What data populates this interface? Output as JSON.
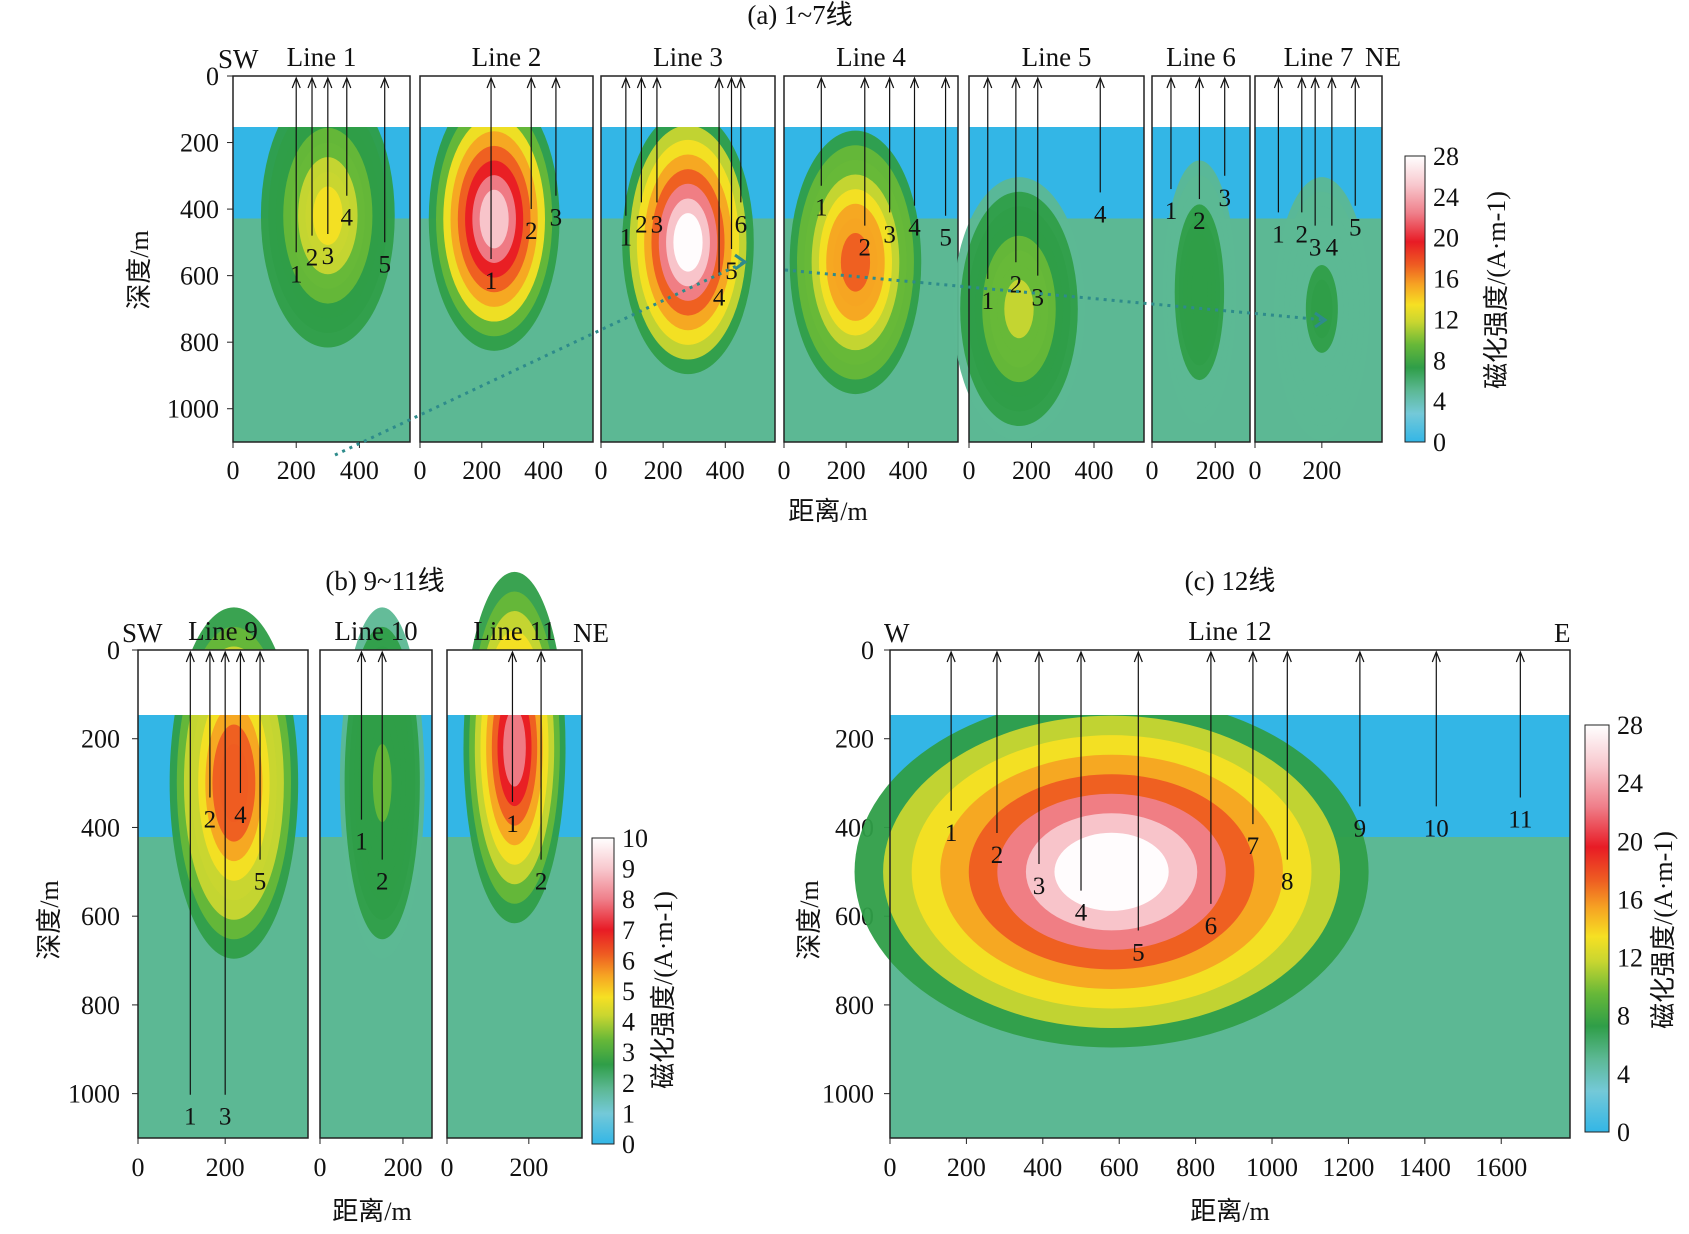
{
  "chart_data": [
    {
      "id": "a",
      "type": "heatmap",
      "title": "(a) 1~7线",
      "xlabel": "距离/m",
      "ylabel": "深度/m",
      "colorbar_label": "磁化强度/(A·m-1)",
      "colorbar_ticks": [
        "28",
        "24",
        "20",
        "16",
        "12",
        "8",
        "4",
        "0"
      ],
      "colorbar_range": [
        0,
        28
      ],
      "ylim": [
        1100,
        0
      ],
      "yticks": [
        "0",
        "200",
        "400",
        "600",
        "800",
        "1000"
      ],
      "direction_left": "SW",
      "direction_right": "NE",
      "panels": [
        {
          "name": "Line 1",
          "xlim": [
            0,
            560
          ],
          "xticks": [
            "0",
            "200",
            "400"
          ],
          "xtick_values": [
            0,
            200,
            400
          ],
          "holes": [
            {
              "x": 200,
              "label": "1",
              "label_depth": 620
            },
            {
              "x": 250,
              "label": "2",
              "label_depth": 570
            },
            {
              "x": 300,
              "label": "3",
              "label_depth": 565
            },
            {
              "x": 360,
              "label": "4",
              "label_depth": 450
            },
            {
              "x": 480,
              "label": "5",
              "label_depth": 590
            }
          ],
          "anomaly": {
            "x": 300,
            "depth": 420,
            "peak": 13
          }
        },
        {
          "name": "Line 2",
          "xlim": [
            0,
            560
          ],
          "xticks": [
            "0",
            "200",
            "400"
          ],
          "xtick_values": [
            0,
            200,
            400
          ],
          "holes": [
            {
              "x": 230,
              "label": "1",
              "label_depth": 640
            },
            {
              "x": 360,
              "label": "2",
              "label_depth": 490
            },
            {
              "x": 440,
              "label": "3",
              "label_depth": 450
            }
          ],
          "anomaly": {
            "x": 240,
            "depth": 430,
            "peak": 26
          }
        },
        {
          "name": "Line 3",
          "xlim": [
            0,
            560
          ],
          "xticks": [
            "0",
            "200",
            "400"
          ],
          "xtick_values": [
            0,
            200,
            400
          ],
          "holes": [
            {
              "x": 80,
              "label": "1",
              "label_depth": 510
            },
            {
              "x": 130,
              "label": "2",
              "label_depth": 470
            },
            {
              "x": 180,
              "label": "3",
              "label_depth": 470
            },
            {
              "x": 380,
              "label": "4",
              "label_depth": 690
            },
            {
              "x": 420,
              "label": "5",
              "label_depth": 610
            },
            {
              "x": 450,
              "label": "6",
              "label_depth": 470
            }
          ],
          "anomaly": {
            "x": 280,
            "depth": 500,
            "peak": 28
          }
        },
        {
          "name": "Line 4",
          "xlim": [
            0,
            560
          ],
          "xticks": [
            "0",
            "200",
            "400"
          ],
          "xtick_values": [
            0,
            200,
            400
          ],
          "holes": [
            {
              "x": 120,
              "label": "1",
              "label_depth": 420
            },
            {
              "x": 260,
              "label": "2",
              "label_depth": 540
            },
            {
              "x": 340,
              "label": "3",
              "label_depth": 500
            },
            {
              "x": 420,
              "label": "4",
              "label_depth": 480
            },
            {
              "x": 520,
              "label": "5",
              "label_depth": 510
            }
          ],
          "anomaly": {
            "x": 230,
            "depth": 560,
            "peak": 19
          }
        },
        {
          "name": "Line 5",
          "xlim": [
            0,
            560
          ],
          "xticks": [
            "0",
            "200",
            "400"
          ],
          "xtick_values": [
            0,
            200,
            400
          ],
          "holes": [
            {
              "x": 60,
              "label": "1",
              "label_depth": 700
            },
            {
              "x": 150,
              "label": "2",
              "label_depth": 650
            },
            {
              "x": 220,
              "label": "3",
              "label_depth": 690
            },
            {
              "x": 420,
              "label": "4",
              "label_depth": 440
            }
          ],
          "anomaly": {
            "x": 160,
            "depth": 700,
            "peak": 11
          }
        },
        {
          "name": "Line 6",
          "xlim": [
            0,
            310
          ],
          "xticks": [
            "0",
            "200"
          ],
          "xtick_values": [
            0,
            200
          ],
          "holes": [
            {
              "x": 60,
              "label": "1",
              "label_depth": 430
            },
            {
              "x": 150,
              "label": "2",
              "label_depth": 460
            },
            {
              "x": 230,
              "label": "3",
              "label_depth": 390
            }
          ],
          "anomaly": {
            "x": 150,
            "depth": 650,
            "peak": 7
          }
        },
        {
          "name": "Line 7",
          "xlim": [
            0,
            380
          ],
          "xticks": [
            "0",
            "200"
          ],
          "xtick_values": [
            0,
            200
          ],
          "holes": [
            {
              "x": 70,
              "label": "1",
              "label_depth": 500
            },
            {
              "x": 140,
              "label": "2",
              "label_depth": 500
            },
            {
              "x": 180,
              "label": "3",
              "label_depth": 540
            },
            {
              "x": 230,
              "label": "4",
              "label_depth": 540
            },
            {
              "x": 300,
              "label": "5",
              "label_depth": 480
            }
          ],
          "anomaly": {
            "x": 200,
            "depth": 700,
            "peak": 6
          }
        }
      ]
    },
    {
      "id": "b",
      "type": "heatmap",
      "title": "(b) 9~11线",
      "xlabel": "距离/m",
      "ylabel": "深度/m",
      "colorbar_label": "磁化强度/(A·m-1)",
      "colorbar_ticks": [
        "10",
        "9",
        "8",
        "7",
        "6",
        "5",
        "4",
        "3",
        "2",
        "1",
        "0"
      ],
      "colorbar_range": [
        0,
        10
      ],
      "ylim": [
        1100,
        0
      ],
      "yticks": [
        "0",
        "200",
        "400",
        "600",
        "800",
        "1000"
      ],
      "direction_left": "SW",
      "direction_right": "NE",
      "panels": [
        {
          "name": "Line 9",
          "xlim": [
            0,
            390
          ],
          "xticks": [
            "0",
            "200"
          ],
          "xtick_values": [
            0,
            200
          ],
          "holes": [
            {
              "x": 120,
              "label": "1",
              "label_depth": 1070
            },
            {
              "x": 165,
              "label": "2",
              "label_depth": 400
            },
            {
              "x": 200,
              "label": "3",
              "label_depth": 1070
            },
            {
              "x": 235,
              "label": "4",
              "label_depth": 390
            },
            {
              "x": 280,
              "label": "5",
              "label_depth": 540
            }
          ],
          "anomaly": {
            "x": 220,
            "depth": 300,
            "peak": 7
          }
        },
        {
          "name": "Line 10",
          "xlim": [
            0,
            270
          ],
          "xticks": [
            "0",
            "200"
          ],
          "xtick_values": [
            0,
            200
          ],
          "holes": [
            {
              "x": 100,
              "label": "1",
              "label_depth": 450
            },
            {
              "x": 150,
              "label": "2",
              "label_depth": 540
            }
          ],
          "anomaly": {
            "x": 150,
            "depth": 300,
            "peak": 3
          }
        },
        {
          "name": "Line 11",
          "xlim": [
            0,
            330
          ],
          "xticks": [
            "0",
            "200"
          ],
          "xtick_values": [
            0,
            200
          ],
          "holes": [
            {
              "x": 160,
              "label": "1",
              "label_depth": 410
            },
            {
              "x": 230,
              "label": "2",
              "label_depth": 540
            }
          ],
          "anomaly": {
            "x": 165,
            "depth": 220,
            "peak": 8
          }
        }
      ]
    },
    {
      "id": "c",
      "type": "heatmap",
      "title": "(c) 12线",
      "xlabel": "距离/m",
      "ylabel": "深度/m",
      "colorbar_label": "磁化强度/(A·m-1)",
      "colorbar_ticks": [
        "28",
        "24",
        "20",
        "16",
        "12",
        "8",
        "4",
        "0"
      ],
      "colorbar_range": [
        0,
        28
      ],
      "ylim": [
        1100,
        0
      ],
      "yticks": [
        "0",
        "200",
        "400",
        "600",
        "800",
        "1000"
      ],
      "direction_left": "W",
      "direction_right": "E",
      "panels": [
        {
          "name": "Line 12",
          "xlim": [
            0,
            1780
          ],
          "xticks": [
            "0",
            "200",
            "400",
            "600",
            "800",
            "1000",
            "1200",
            "1400",
            "1600"
          ],
          "xtick_values": [
            0,
            200,
            400,
            600,
            800,
            1000,
            1200,
            1400,
            1600
          ],
          "holes": [
            {
              "x": 160,
              "label": "1",
              "label_depth": 430
            },
            {
              "x": 280,
              "label": "2",
              "label_depth": 480
            },
            {
              "x": 390,
              "label": "3",
              "label_depth": 550
            },
            {
              "x": 500,
              "label": "4",
              "label_depth": 610
            },
            {
              "x": 650,
              "label": "5",
              "label_depth": 700
            },
            {
              "x": 840,
              "label": "6",
              "label_depth": 640
            },
            {
              "x": 950,
              "label": "7",
              "label_depth": 460
            },
            {
              "x": 1040,
              "label": "8",
              "label_depth": 540
            },
            {
              "x": 1230,
              "label": "9",
              "label_depth": 420
            },
            {
              "x": 1430,
              "label": "10",
              "label_depth": 420
            },
            {
              "x": 1650,
              "label": "11",
              "label_depth": 400
            }
          ],
          "anomaly": {
            "x": 580,
            "depth": 500,
            "peak": 28
          }
        }
      ]
    }
  ]
}
